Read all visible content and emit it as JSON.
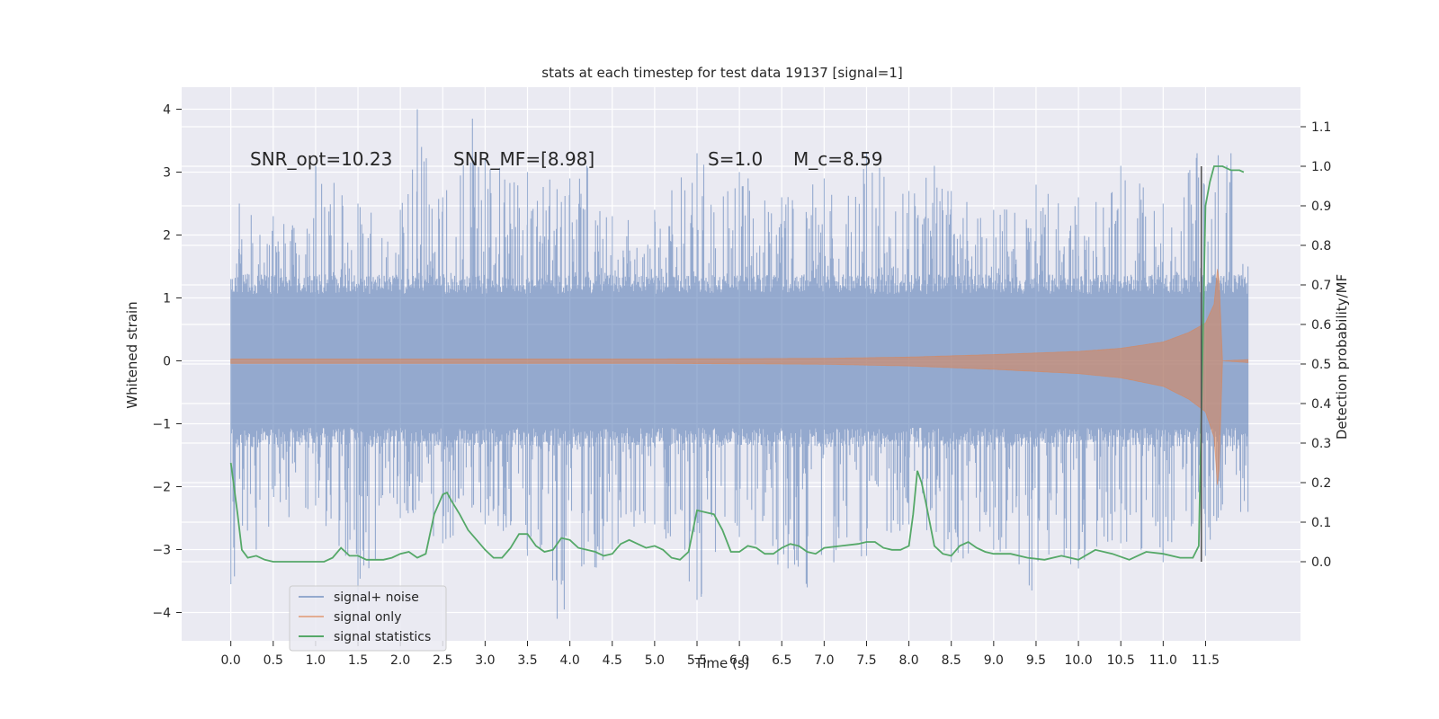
{
  "chart_data": {
    "type": "line",
    "title": "stats at each timestep for test data 19137 [signal=1]",
    "xlabel": "Time (s)",
    "ylabel": "Whitened strain",
    "y2label": "Detection probability/MF",
    "xlim": [
      -0.58,
      12.62
    ],
    "ylim": [
      -4.45,
      4.35
    ],
    "y2lim": [
      -0.2,
      1.2
    ],
    "xticks": [
      "0.0",
      "0.5",
      "1.0",
      "1.5",
      "2.0",
      "2.5",
      "3.0",
      "3.5",
      "4.0",
      "4.5",
      "5.0",
      "5.5",
      "6.0",
      "6.5",
      "7.0",
      "7.5",
      "8.0",
      "8.5",
      "9.0",
      "9.5",
      "10.0",
      "10.5",
      "11.0",
      "11.5"
    ],
    "yticks": [
      "4",
      "3",
      "2",
      "1",
      "0",
      "−1",
      "−2",
      "−3",
      "−4"
    ],
    "y2ticks": [
      "1.1",
      "1.0",
      "0.9",
      "0.8",
      "0.7",
      "0.6",
      "0.5",
      "0.4",
      "0.3",
      "0.2",
      "0.1",
      "0.0"
    ],
    "grid": true,
    "annotations": [
      {
        "text": "SNR_opt=10.23",
        "x": 0.2,
        "y": 3.15
      },
      {
        "text": "SNR_MF=[8.98]",
        "x": 2.6,
        "y": 3.15
      },
      {
        "text": "S=1.0",
        "x": 5.6,
        "y": 3.15
      },
      {
        "text": "M_c=8.59",
        "x": 6.6,
        "y": 3.15
      }
    ],
    "legend": {
      "position": "lower-left",
      "entries": [
        "signal+ noise",
        "signal only",
        "signal statistics"
      ]
    },
    "series": [
      {
        "name": "signal+ noise",
        "color": "#4c72b0",
        "axis": "left",
        "description_points": {
          "t_range": [
            0.0,
            12.0
          ],
          "typical_band": [
            -1.25,
            1.25
          ],
          "upper_peaks": [
            [
              0.05,
              1.3
            ],
            [
              0.1,
              2.5
            ],
            [
              0.5,
              2.3
            ],
            [
              0.9,
              2.1
            ],
            [
              1.0,
              3.1
            ],
            [
              1.5,
              2.5
            ],
            [
              2.0,
              2.4
            ],
            [
              2.2,
              4.0
            ],
            [
              2.25,
              3.4
            ],
            [
              2.5,
              2.6
            ],
            [
              2.85,
              3.85
            ],
            [
              3.0,
              3.2
            ],
            [
              3.5,
              3.0
            ],
            [
              4.0,
              2.9
            ],
            [
              4.2,
              3.1
            ],
            [
              4.5,
              2.3
            ],
            [
              5.0,
              2.4
            ],
            [
              5.5,
              3.3
            ],
            [
              6.0,
              3.0
            ],
            [
              6.5,
              2.6
            ],
            [
              7.0,
              2.9
            ],
            [
              7.5,
              3.3
            ],
            [
              8.0,
              2.7
            ],
            [
              8.3,
              3.1
            ],
            [
              8.5,
              2.7
            ],
            [
              9.0,
              2.4
            ],
            [
              9.5,
              2.8
            ],
            [
              10.0,
              2.6
            ],
            [
              10.5,
              3.1
            ],
            [
              11.0,
              2.5
            ],
            [
              11.4,
              3.3
            ],
            [
              11.8,
              3.3
            ],
            [
              12.0,
              1.5
            ]
          ],
          "lower_peaks": [
            [
              0.0,
              -3.55
            ],
            [
              0.3,
              -3.0
            ],
            [
              1.0,
              -2.3
            ],
            [
              1.5,
              -3.7
            ],
            [
              2.0,
              -2.5
            ],
            [
              2.5,
              -2.9
            ],
            [
              3.0,
              -2.6
            ],
            [
              3.5,
              -3.1
            ],
            [
              3.85,
              -4.1
            ],
            [
              4.5,
              -3.0
            ],
            [
              5.0,
              -2.6
            ],
            [
              5.5,
              -3.8
            ],
            [
              5.55,
              -3.75
            ],
            [
              6.0,
              -2.8
            ],
            [
              6.8,
              -3.6
            ],
            [
              7.5,
              -3.1
            ],
            [
              8.0,
              -2.6
            ],
            [
              8.5,
              -3.2
            ],
            [
              9.0,
              -3.0
            ],
            [
              9.45,
              -3.65
            ],
            [
              10.0,
              -3.3
            ],
            [
              10.5,
              -2.9
            ],
            [
              11.0,
              -3.2
            ],
            [
              11.5,
              -3.1
            ],
            [
              12.0,
              -2.4
            ]
          ]
        }
      },
      {
        "name": "signal only",
        "color": "#dd8452",
        "axis": "left",
        "description_points": {
          "t_range": [
            0.0,
            12.0
          ],
          "envelope": [
            [
              0.0,
              0.03
            ],
            [
              5.0,
              0.03
            ],
            [
              7.0,
              0.04
            ],
            [
              8.0,
              0.06
            ],
            [
              9.0,
              0.1
            ],
            [
              10.0,
              0.15
            ],
            [
              10.5,
              0.2
            ],
            [
              11.0,
              0.3
            ],
            [
              11.3,
              0.45
            ],
            [
              11.5,
              0.6
            ],
            [
              11.6,
              0.9
            ],
            [
              11.65,
              1.6
            ],
            [
              11.7,
              0.0
            ],
            [
              12.0,
              0.02
            ]
          ]
        }
      },
      {
        "name": "signal statistics",
        "color": "#55a868",
        "axis": "right",
        "x": [
          0.0,
          0.08,
          0.13,
          0.2,
          0.3,
          0.4,
          0.5,
          0.7,
          0.9,
          1.0,
          1.1,
          1.2,
          1.3,
          1.4,
          1.5,
          1.6,
          1.7,
          1.8,
          1.9,
          2.0,
          2.1,
          2.2,
          2.3,
          2.4,
          2.5,
          2.55,
          2.6,
          2.7,
          2.8,
          2.9,
          3.0,
          3.1,
          3.2,
          3.3,
          3.4,
          3.5,
          3.6,
          3.7,
          3.8,
          3.9,
          4.0,
          4.1,
          4.2,
          4.3,
          4.4,
          4.5,
          4.6,
          4.7,
          4.8,
          4.9,
          5.0,
          5.1,
          5.2,
          5.3,
          5.4,
          5.5,
          5.6,
          5.7,
          5.8,
          5.9,
          6.0,
          6.1,
          6.2,
          6.3,
          6.4,
          6.5,
          6.6,
          6.7,
          6.8,
          6.9,
          7.0,
          7.2,
          7.4,
          7.5,
          7.6,
          7.7,
          7.8,
          7.9,
          8.0,
          8.05,
          8.1,
          8.15,
          8.2,
          8.3,
          8.4,
          8.5,
          8.6,
          8.7,
          8.8,
          8.9,
          9.0,
          9.2,
          9.4,
          9.6,
          9.8,
          10.0,
          10.2,
          10.4,
          10.6,
          10.8,
          11.0,
          11.2,
          11.35,
          11.42,
          11.5,
          11.55,
          11.6,
          11.65,
          11.7,
          11.8,
          11.9,
          11.95
        ],
        "values": [
          0.25,
          0.12,
          0.03,
          0.01,
          0.015,
          0.005,
          0.0,
          0.0,
          0.0,
          0.0,
          0.0,
          0.01,
          0.035,
          0.015,
          0.015,
          0.005,
          0.005,
          0.005,
          0.01,
          0.02,
          0.025,
          0.01,
          0.02,
          0.12,
          0.17,
          0.175,
          0.155,
          0.12,
          0.08,
          0.055,
          0.03,
          0.01,
          0.01,
          0.035,
          0.07,
          0.07,
          0.04,
          0.025,
          0.03,
          0.06,
          0.055,
          0.035,
          0.03,
          0.025,
          0.015,
          0.02,
          0.045,
          0.055,
          0.045,
          0.035,
          0.04,
          0.03,
          0.01,
          0.005,
          0.025,
          0.13,
          0.125,
          0.12,
          0.08,
          0.025,
          0.025,
          0.04,
          0.035,
          0.02,
          0.02,
          0.035,
          0.045,
          0.04,
          0.025,
          0.02,
          0.035,
          0.04,
          0.045,
          0.05,
          0.05,
          0.035,
          0.03,
          0.03,
          0.04,
          0.12,
          0.23,
          0.2,
          0.15,
          0.04,
          0.02,
          0.015,
          0.04,
          0.05,
          0.035,
          0.025,
          0.02,
          0.02,
          0.01,
          0.005,
          0.015,
          0.005,
          0.03,
          0.02,
          0.005,
          0.025,
          0.02,
          0.01,
          0.01,
          0.04,
          0.9,
          0.96,
          1.0,
          1.0,
          1.0,
          0.99,
          0.99,
          0.985
        ]
      }
    ],
    "vertical_line": {
      "x": 11.45,
      "y2_range": [
        0.0,
        1.0
      ],
      "color": "#555555"
    }
  }
}
